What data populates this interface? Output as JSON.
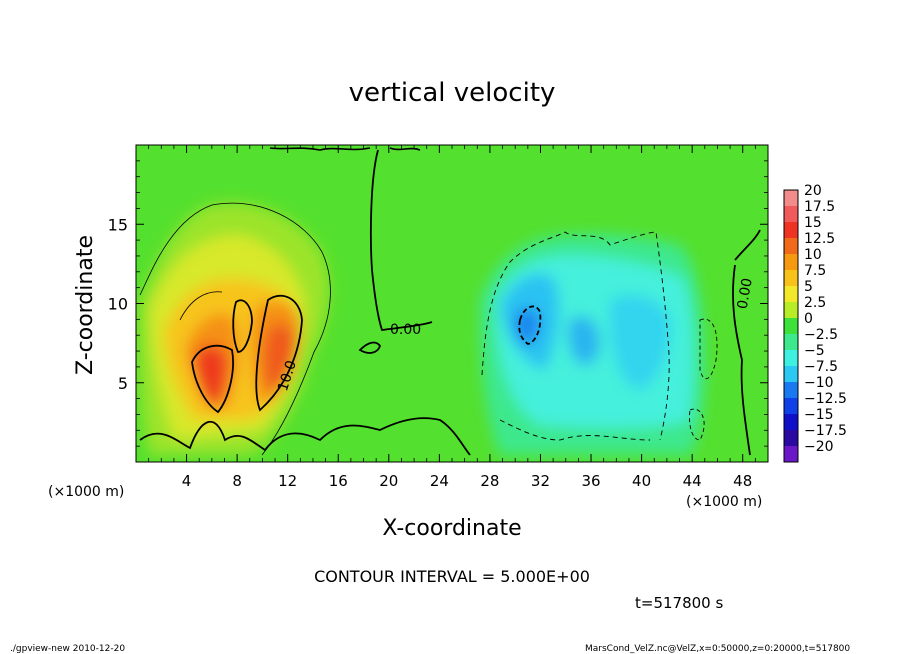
{
  "chart_data": {
    "type": "heatmap",
    "title": "vertical velocity",
    "xlabel": "X-coordinate",
    "ylabel": "Z-coordinate",
    "x_unit": "(×1000 m)",
    "z_unit": "(×1000 m)",
    "xlim": [
      0,
      50
    ],
    "ylim": [
      0,
      20
    ],
    "x_ticks": [
      "4",
      "8",
      "12",
      "16",
      "20",
      "24",
      "28",
      "32",
      "36",
      "40",
      "44",
      "48"
    ],
    "y_ticks": [
      "5",
      "10",
      "15"
    ],
    "x_tick_values": [
      4,
      8,
      12,
      16,
      20,
      24,
      28,
      32,
      36,
      40,
      44,
      48
    ],
    "y_tick_values": [
      5,
      10,
      15
    ],
    "contour_labels": [
      "0.00",
      "10.0",
      "0.00"
    ],
    "colorbar": {
      "labels": [
        "20",
        "17.5",
        "15",
        "12.5",
        "10",
        "7.5",
        "5",
        "2.5",
        "0",
        "−2.5",
        "−5",
        "−7.5",
        "−10",
        "−12.5",
        "−15",
        "−17.5",
        "−20"
      ],
      "colors": [
        "#f28c8c",
        "#f05a5a",
        "#ee3322",
        "#f06a1a",
        "#f59a10",
        "#f8c21a",
        "#f2e82a",
        "#b8ec28",
        "#3ee03a",
        "#3ee88c",
        "#3ef0e0",
        "#2ac8f2",
        "#1a78f0",
        "#1040e8",
        "#1010c8",
        "#2a0aa0",
        "#6a18c8"
      ]
    },
    "contour_interval": "CONTOUR INTERVAL = 5.000E+00",
    "time": "t=517800 s",
    "footer_left": "./gpview-new  2010-12-20",
    "footer_right": "MarsCond_VelZ.nc@VelZ,x=0:50000,z=0:20000,t=517800"
  }
}
